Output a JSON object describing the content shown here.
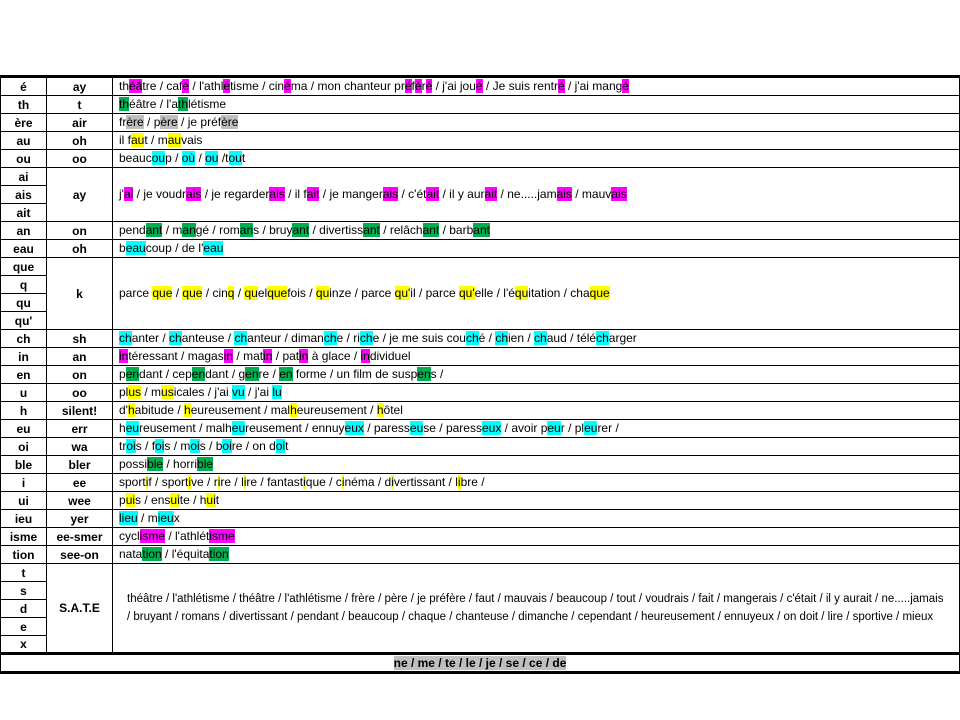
{
  "highlight_colors": {
    "m": "#ff00ff",
    "g": "#00b050",
    "y": "#ffff00",
    "c": "#00ffff",
    "gr": "#bfbfbf"
  },
  "table": {
    "rows": [
      {
        "patterns": [
          "é"
        ],
        "sound": "ay",
        "examples": [
          [
            "th",
            ""
          ],
          [
            "éâ",
            "m"
          ],
          [
            "tre / caf",
            ""
          ],
          [
            "é",
            "m"
          ],
          [
            " / l'athl",
            ""
          ],
          [
            "é",
            "m"
          ],
          [
            "tisme  / cin",
            ""
          ],
          [
            "é",
            "m"
          ],
          [
            "ma  / mon chanteur  pr",
            ""
          ],
          [
            "é",
            "m"
          ],
          [
            "f",
            ""
          ],
          [
            "é",
            "m"
          ],
          [
            "r",
            ""
          ],
          [
            "é",
            "m"
          ],
          [
            " / j'ai jou",
            ""
          ],
          [
            "é",
            "m"
          ],
          [
            " / Je suis rentr",
            ""
          ],
          [
            "é",
            "m"
          ],
          [
            " / j'ai mang",
            ""
          ],
          [
            "é",
            "m"
          ]
        ]
      },
      {
        "patterns": [
          "th"
        ],
        "sound": "t",
        "examples": [
          [
            "th",
            "g"
          ],
          [
            "éâtre / l'a",
            ""
          ],
          [
            "th",
            "g"
          ],
          [
            "létisme",
            ""
          ]
        ]
      },
      {
        "patterns": [
          "ère"
        ],
        "sound": "air",
        "examples": [
          [
            "fr",
            ""
          ],
          [
            "ère",
            "gr"
          ],
          [
            " / p",
            ""
          ],
          [
            "ère",
            "gr"
          ],
          [
            " / je préf",
            ""
          ],
          [
            "ère",
            "gr"
          ]
        ]
      },
      {
        "patterns": [
          "au"
        ],
        "sound": "oh",
        "examples": [
          [
            "il f",
            ""
          ],
          [
            "au",
            "y"
          ],
          [
            "t / m",
            ""
          ],
          [
            "au",
            "y"
          ],
          [
            "vais",
            ""
          ]
        ]
      },
      {
        "patterns": [
          "ou"
        ],
        "sound": "oo",
        "examples": [
          [
            "beauc",
            ""
          ],
          [
            "ou",
            "c"
          ],
          [
            "p  / ",
            ""
          ],
          [
            "où",
            "c"
          ],
          [
            " / ",
            ""
          ],
          [
            "ou",
            "c"
          ],
          [
            " /t",
            ""
          ],
          [
            "ou",
            "c"
          ],
          [
            "t",
            ""
          ]
        ]
      },
      {
        "patterns": [
          "ai",
          "ais",
          "ait"
        ],
        "sound": "ay",
        "examples": [
          [
            "j'",
            ""
          ],
          [
            "ai",
            "m"
          ],
          [
            " / je voudr",
            ""
          ],
          [
            "ais",
            "m"
          ],
          [
            " / je regarder",
            ""
          ],
          [
            "ais",
            "m"
          ],
          [
            " / il f",
            ""
          ],
          [
            "ait",
            "m"
          ],
          [
            " / je manger",
            ""
          ],
          [
            "ais",
            "m"
          ],
          [
            " / c'ét",
            ""
          ],
          [
            "ait",
            "m"
          ],
          [
            " / il y aur",
            ""
          ],
          [
            "ait",
            "m"
          ],
          [
            " / ne.....jam",
            ""
          ],
          [
            "ais",
            "m"
          ],
          [
            " / mauv",
            ""
          ],
          [
            "ais",
            "m"
          ]
        ]
      },
      {
        "patterns": [
          "an"
        ],
        "sound": "on",
        "examples": [
          [
            "pend",
            ""
          ],
          [
            "ant",
            "g"
          ],
          [
            " / m",
            ""
          ],
          [
            "an",
            "g"
          ],
          [
            "gé / rom",
            ""
          ],
          [
            "an",
            "g"
          ],
          [
            "s / bruy",
            ""
          ],
          [
            "ant",
            "g"
          ],
          [
            " / divertiss",
            ""
          ],
          [
            "ant",
            "g"
          ],
          [
            " / relâch",
            ""
          ],
          [
            "ant",
            "g"
          ],
          [
            " / barb",
            ""
          ],
          [
            "ant",
            "g"
          ]
        ]
      },
      {
        "patterns": [
          "eau"
        ],
        "sound": "oh",
        "examples": [
          [
            "b",
            ""
          ],
          [
            "eau",
            "c"
          ],
          [
            "coup  / de l'",
            ""
          ],
          [
            "eau",
            "c"
          ]
        ]
      },
      {
        "patterns": [
          "que",
          "q",
          "qu",
          "qu'"
        ],
        "sound": "k",
        "examples": [
          [
            "parce ",
            ""
          ],
          [
            "que",
            "y"
          ],
          [
            " / ",
            ""
          ],
          [
            "que",
            "y"
          ],
          [
            " / cin",
            ""
          ],
          [
            "q",
            "y"
          ],
          [
            "  / ",
            ""
          ],
          [
            "qu",
            "y"
          ],
          [
            "el",
            ""
          ],
          [
            "que",
            "y"
          ],
          [
            "fois  / ",
            ""
          ],
          [
            "qu",
            "y"
          ],
          [
            "inze / parce ",
            ""
          ],
          [
            "qu'",
            "y"
          ],
          [
            "il / parce ",
            ""
          ],
          [
            "qu'",
            "y"
          ],
          [
            "elle / l'é",
            ""
          ],
          [
            "qu",
            "y"
          ],
          [
            "itation  / cha",
            ""
          ],
          [
            "que",
            "y"
          ]
        ]
      },
      {
        "patterns": [
          "ch"
        ],
        "sound": "sh",
        "examples": [
          [
            "ch",
            "c"
          ],
          [
            "anter / ",
            ""
          ],
          [
            "ch",
            "c"
          ],
          [
            "anteuse / ",
            ""
          ],
          [
            "ch",
            "c"
          ],
          [
            "anteur / diman",
            ""
          ],
          [
            "ch",
            "c"
          ],
          [
            "e / ri",
            ""
          ],
          [
            "ch",
            "c"
          ],
          [
            "e / je me suis cou",
            ""
          ],
          [
            "ch",
            "c"
          ],
          [
            "é / ",
            ""
          ],
          [
            "ch",
            "c"
          ],
          [
            "ien / ",
            ""
          ],
          [
            "ch",
            "c"
          ],
          [
            "aud / télé",
            ""
          ],
          [
            "ch",
            "c"
          ],
          [
            "arger",
            ""
          ]
        ]
      },
      {
        "patterns": [
          "in"
        ],
        "sound": "an",
        "examples": [
          [
            "in",
            "m"
          ],
          [
            "téressant / magas",
            ""
          ],
          [
            "in",
            "m"
          ],
          [
            " / mat",
            ""
          ],
          [
            "in",
            "m"
          ],
          [
            " / pat",
            ""
          ],
          [
            "in",
            "m"
          ],
          [
            " à glace / ",
            ""
          ],
          [
            "in",
            "m"
          ],
          [
            "dividuel",
            ""
          ]
        ]
      },
      {
        "patterns": [
          "en"
        ],
        "sound": "on",
        "examples": [
          [
            "p",
            ""
          ],
          [
            "en",
            "g"
          ],
          [
            "dant / cep",
            ""
          ],
          [
            "en",
            "g"
          ],
          [
            "dant / g",
            ""
          ],
          [
            "en",
            "g"
          ],
          [
            "re / ",
            ""
          ],
          [
            "en",
            "g"
          ],
          [
            " forme / un film de susp",
            ""
          ],
          [
            "en",
            "g"
          ],
          [
            "s /",
            ""
          ]
        ]
      },
      {
        "patterns": [
          "u"
        ],
        "sound": "oo",
        "examples": [
          [
            "pl",
            ""
          ],
          [
            "us",
            "y"
          ],
          [
            " / m",
            ""
          ],
          [
            "us",
            "y"
          ],
          [
            "icales / j'ai ",
            ""
          ],
          [
            "vu",
            "c"
          ],
          [
            " / j'ai ",
            ""
          ],
          [
            "lu",
            "c"
          ]
        ]
      },
      {
        "patterns": [
          "h"
        ],
        "sound": "silent!",
        "examples": [
          [
            "d'",
            ""
          ],
          [
            "h",
            "y"
          ],
          [
            "abitude / ",
            ""
          ],
          [
            "h",
            "y"
          ],
          [
            "eureusement / mal",
            ""
          ],
          [
            "h",
            "y"
          ],
          [
            "eureusement  / ",
            ""
          ],
          [
            "h",
            "y"
          ],
          [
            "ôtel",
            ""
          ]
        ]
      },
      {
        "patterns": [
          "eu"
        ],
        "sound": "err",
        "examples": [
          [
            "h",
            ""
          ],
          [
            "eu",
            "c"
          ],
          [
            "reusement / malh",
            ""
          ],
          [
            "eu",
            "c"
          ],
          [
            "reusement / ennuy",
            ""
          ],
          [
            "eux",
            "c"
          ],
          [
            " / paress",
            ""
          ],
          [
            "eu",
            "c"
          ],
          [
            "se / paress",
            ""
          ],
          [
            "eux",
            "c"
          ],
          [
            " / avoir p",
            ""
          ],
          [
            "eu",
            "c"
          ],
          [
            "r / pl",
            ""
          ],
          [
            "eu",
            "c"
          ],
          [
            "rer /",
            ""
          ]
        ]
      },
      {
        "patterns": [
          "oi"
        ],
        "sound": "wa",
        "examples": [
          [
            "tr",
            ""
          ],
          [
            "oi",
            "c"
          ],
          [
            "s / f",
            ""
          ],
          [
            "oi",
            "c"
          ],
          [
            "s / m",
            ""
          ],
          [
            "oi",
            "c"
          ],
          [
            "s / b",
            ""
          ],
          [
            "oi",
            "c"
          ],
          [
            "re / on d",
            ""
          ],
          [
            "oi",
            "c"
          ],
          [
            "t",
            ""
          ]
        ]
      },
      {
        "patterns": [
          "ble"
        ],
        "sound": "bler",
        "examples": [
          [
            "possi",
            ""
          ],
          [
            "ble",
            "g"
          ],
          [
            " / horri",
            ""
          ],
          [
            "ble",
            "g"
          ]
        ]
      },
      {
        "patterns": [
          "i"
        ],
        "sound": "ee",
        "examples": [
          [
            "sport",
            ""
          ],
          [
            "i",
            "y"
          ],
          [
            "f / sport",
            ""
          ],
          [
            "i",
            "y"
          ],
          [
            "ve / r",
            ""
          ],
          [
            "i",
            "y"
          ],
          [
            "re / l",
            ""
          ],
          [
            "i",
            "y"
          ],
          [
            "re / fantast",
            ""
          ],
          [
            "i",
            "y"
          ],
          [
            "que / c",
            ""
          ],
          [
            "i",
            "y"
          ],
          [
            "néma / d",
            ""
          ],
          [
            "i",
            "y"
          ],
          [
            "vertissant / l",
            ""
          ],
          [
            "i",
            "y"
          ],
          [
            "bre /",
            ""
          ]
        ]
      },
      {
        "patterns": [
          "ui"
        ],
        "sound": "wee",
        "examples": [
          [
            "p",
            ""
          ],
          [
            "ui",
            "y"
          ],
          [
            "s / ens",
            ""
          ],
          [
            "ui",
            "y"
          ],
          [
            "te / h",
            ""
          ],
          [
            "ui",
            "y"
          ],
          [
            "t",
            ""
          ]
        ]
      },
      {
        "patterns": [
          "ieu"
        ],
        "sound": "yer",
        "examples": [
          [
            "lieu",
            "c"
          ],
          [
            " / m",
            ""
          ],
          [
            "ieu",
            "c"
          ],
          [
            "x",
            ""
          ]
        ]
      },
      {
        "patterns": [
          "isme"
        ],
        "sound": "ee-smer",
        "examples": [
          [
            "cycl",
            ""
          ],
          [
            "isme",
            "m"
          ],
          [
            " / l'athlét",
            ""
          ],
          [
            "isme",
            "m"
          ]
        ]
      },
      {
        "patterns": [
          "tion"
        ],
        "sound": "see-on",
        "examples": [
          [
            "nata",
            ""
          ],
          [
            "tion",
            "g"
          ],
          [
            " / l'équita",
            ""
          ],
          [
            "tion",
            "g"
          ]
        ]
      },
      {
        "patterns": [
          "t",
          "s",
          "d",
          "e",
          "x"
        ],
        "sound": "S.A.T.E",
        "examples": [
          [
            "théâtre / l'athlétisme / théâtre / l'athlétisme / frère / père / je préfère / faut / mauvais / beaucoup / tout / voudrais / fait / mangerais / c'était / il y aurait / ne.....jamais / bruyant / romans / divertissant / pendant / beaucoup / chaque / chanteuse / dimanche / cependant / heureusement / ennuyeux / on doit / lire / sportive / mieux",
            ""
          ]
        ]
      }
    ],
    "footer": [
      [
        "ne / me / te / le / je / se / ce / de",
        "gr"
      ]
    ]
  }
}
